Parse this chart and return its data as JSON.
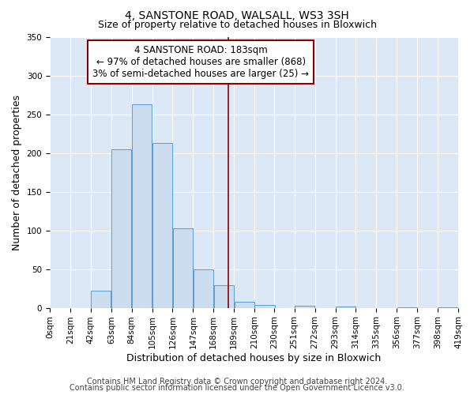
{
  "title": "4, SANSTONE ROAD, WALSALL, WS3 3SH",
  "subtitle": "Size of property relative to detached houses in Bloxwich",
  "xlabel": "Distribution of detached houses by size in Bloxwich",
  "ylabel": "Number of detached properties",
  "bin_edges": [
    0,
    21,
    42,
    63,
    84,
    105,
    126,
    147,
    168,
    189,
    210,
    230,
    251,
    272,
    293,
    314,
    335,
    356,
    377,
    398,
    419
  ],
  "bar_heights": [
    0,
    0,
    22,
    205,
    263,
    213,
    103,
    50,
    29,
    8,
    4,
    0,
    3,
    0,
    2,
    0,
    0,
    1,
    0,
    1
  ],
  "bar_color": "#ccddf0",
  "bar_edgecolor": "#5b9bd5",
  "vline_x": 183,
  "vline_color": "#8b0000",
  "ylim": [
    0,
    350
  ],
  "yticks": [
    0,
    50,
    100,
    150,
    200,
    250,
    300,
    350
  ],
  "xtick_labels": [
    "0sqm",
    "21sqm",
    "42sqm",
    "63sqm",
    "84sqm",
    "105sqm",
    "126sqm",
    "147sqm",
    "168sqm",
    "189sqm",
    "210sqm",
    "230sqm",
    "251sqm",
    "272sqm",
    "293sqm",
    "314sqm",
    "335sqm",
    "356sqm",
    "377sqm",
    "398sqm",
    "419sqm"
  ],
  "annotation_title": "4 SANSTONE ROAD: 183sqm",
  "annotation_line1": "← 97% of detached houses are smaller (868)",
  "annotation_line2": "3% of semi-detached houses are larger (25) →",
  "annotation_box_facecolor": "#ffffff",
  "annotation_box_edgecolor": "#8b0000",
  "footer_line1": "Contains HM Land Registry data © Crown copyright and database right 2024.",
  "footer_line2": "Contains public sector information licensed under the Open Government Licence v3.0.",
  "fig_facecolor": "#ffffff",
  "ax_facecolor": "#dce8f5",
  "grid_color": "#ffffff",
  "title_fontsize": 10,
  "subtitle_fontsize": 9,
  "axis_label_fontsize": 9,
  "tick_fontsize": 7.5,
  "annotation_title_fontsize": 9,
  "annotation_body_fontsize": 8.5,
  "footer_fontsize": 7
}
